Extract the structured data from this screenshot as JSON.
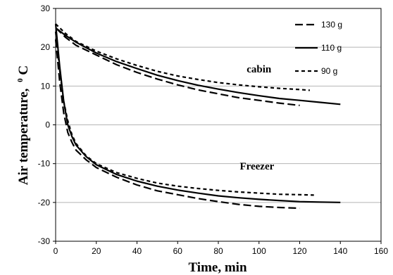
{
  "chart_data": {
    "type": "line",
    "title": "",
    "xlabel": "Time, min",
    "ylabel_main": "Air temperature,",
    "ylabel_sup": "0",
    "ylabel_unit": "C",
    "xlim": [
      0,
      160
    ],
    "ylim": [
      -30,
      30
    ],
    "x_ticks": [
      0,
      20,
      40,
      60,
      80,
      100,
      120,
      140,
      160
    ],
    "y_ticks": [
      -30,
      -20,
      -10,
      0,
      10,
      20,
      30
    ],
    "grid": "horizontal",
    "legend_position": "top-right",
    "legend": [
      {
        "label": "130 g",
        "style": "long-dash"
      },
      {
        "label": "110 g",
        "style": "solid"
      },
      {
        "label": "90 g",
        "style": "short-dash"
      }
    ],
    "annotations": [
      {
        "text": "cabin",
        "x": 100,
        "y": 13.5
      },
      {
        "text": "Freezer",
        "x": 99,
        "y": -11.5
      }
    ],
    "series": [
      {
        "name": "130 g",
        "group": "cabin",
        "style": "long-dash",
        "points": [
          [
            0,
            25
          ],
          [
            5,
            22.5
          ],
          [
            10,
            20.5
          ],
          [
            20,
            18
          ],
          [
            30,
            15.5
          ],
          [
            40,
            13.5
          ],
          [
            50,
            11.8
          ],
          [
            60,
            10.3
          ],
          [
            70,
            9
          ],
          [
            80,
            8
          ],
          [
            90,
            7
          ],
          [
            100,
            6.3
          ],
          [
            110,
            5.6
          ],
          [
            120,
            5
          ]
        ]
      },
      {
        "name": "110 g",
        "group": "cabin",
        "style": "solid",
        "points": [
          [
            0,
            25
          ],
          [
            5,
            23
          ],
          [
            10,
            21.3
          ],
          [
            20,
            18.5
          ],
          [
            30,
            16.3
          ],
          [
            40,
            14.5
          ],
          [
            50,
            12.8
          ],
          [
            60,
            11.4
          ],
          [
            70,
            10.2
          ],
          [
            80,
            9.2
          ],
          [
            90,
            8.3
          ],
          [
            100,
            7.5
          ],
          [
            110,
            6.8
          ],
          [
            120,
            6.3
          ],
          [
            130,
            5.8
          ],
          [
            140,
            5.3
          ]
        ]
      },
      {
        "name": "90 g",
        "group": "cabin",
        "style": "short-dash",
        "points": [
          [
            0,
            26
          ],
          [
            5,
            23.5
          ],
          [
            10,
            21.5
          ],
          [
            20,
            19
          ],
          [
            30,
            17
          ],
          [
            40,
            15.3
          ],
          [
            50,
            13.8
          ],
          [
            60,
            12.6
          ],
          [
            70,
            11.7
          ],
          [
            80,
            10.9
          ],
          [
            90,
            10.3
          ],
          [
            100,
            9.8
          ],
          [
            110,
            9.4
          ],
          [
            120,
            9.1
          ],
          [
            125,
            8.9
          ]
        ]
      },
      {
        "name": "130 g",
        "group": "freezer",
        "style": "long-dash",
        "points": [
          [
            0,
            22
          ],
          [
            2,
            11
          ],
          [
            4,
            3
          ],
          [
            6,
            -2
          ],
          [
            8,
            -4.5
          ],
          [
            10,
            -6.5
          ],
          [
            15,
            -9
          ],
          [
            20,
            -11
          ],
          [
            30,
            -13.5
          ],
          [
            40,
            -15.5
          ],
          [
            50,
            -17
          ],
          [
            60,
            -18
          ],
          [
            70,
            -19
          ],
          [
            80,
            -19.8
          ],
          [
            90,
            -20.5
          ],
          [
            100,
            -21
          ],
          [
            110,
            -21.3
          ],
          [
            120,
            -21.5
          ]
        ]
      },
      {
        "name": "110 g",
        "group": "freezer",
        "style": "solid",
        "points": [
          [
            0,
            26
          ],
          [
            2,
            15
          ],
          [
            4,
            6
          ],
          [
            6,
            0
          ],
          [
            8,
            -3
          ],
          [
            10,
            -5.2
          ],
          [
            15,
            -8.2
          ],
          [
            20,
            -10.3
          ],
          [
            30,
            -12.8
          ],
          [
            40,
            -14.5
          ],
          [
            50,
            -15.8
          ],
          [
            60,
            -16.8
          ],
          [
            70,
            -17.6
          ],
          [
            80,
            -18.3
          ],
          [
            90,
            -18.8
          ],
          [
            100,
            -19.2
          ],
          [
            110,
            -19.5
          ],
          [
            120,
            -19.8
          ],
          [
            130,
            -19.9
          ],
          [
            140,
            -20
          ]
        ]
      },
      {
        "name": "90 g",
        "group": "freezer",
        "style": "short-dash",
        "points": [
          [
            0,
            24
          ],
          [
            2,
            14
          ],
          [
            4,
            6
          ],
          [
            6,
            1
          ],
          [
            8,
            -2.5
          ],
          [
            10,
            -4.8
          ],
          [
            15,
            -8
          ],
          [
            20,
            -10
          ],
          [
            30,
            -12.3
          ],
          [
            40,
            -13.8
          ],
          [
            50,
            -15
          ],
          [
            60,
            -15.8
          ],
          [
            70,
            -16.4
          ],
          [
            80,
            -16.9
          ],
          [
            90,
            -17.3
          ],
          [
            100,
            -17.6
          ],
          [
            110,
            -17.9
          ],
          [
            120,
            -18
          ],
          [
            127,
            -18.1
          ]
        ]
      }
    ]
  }
}
